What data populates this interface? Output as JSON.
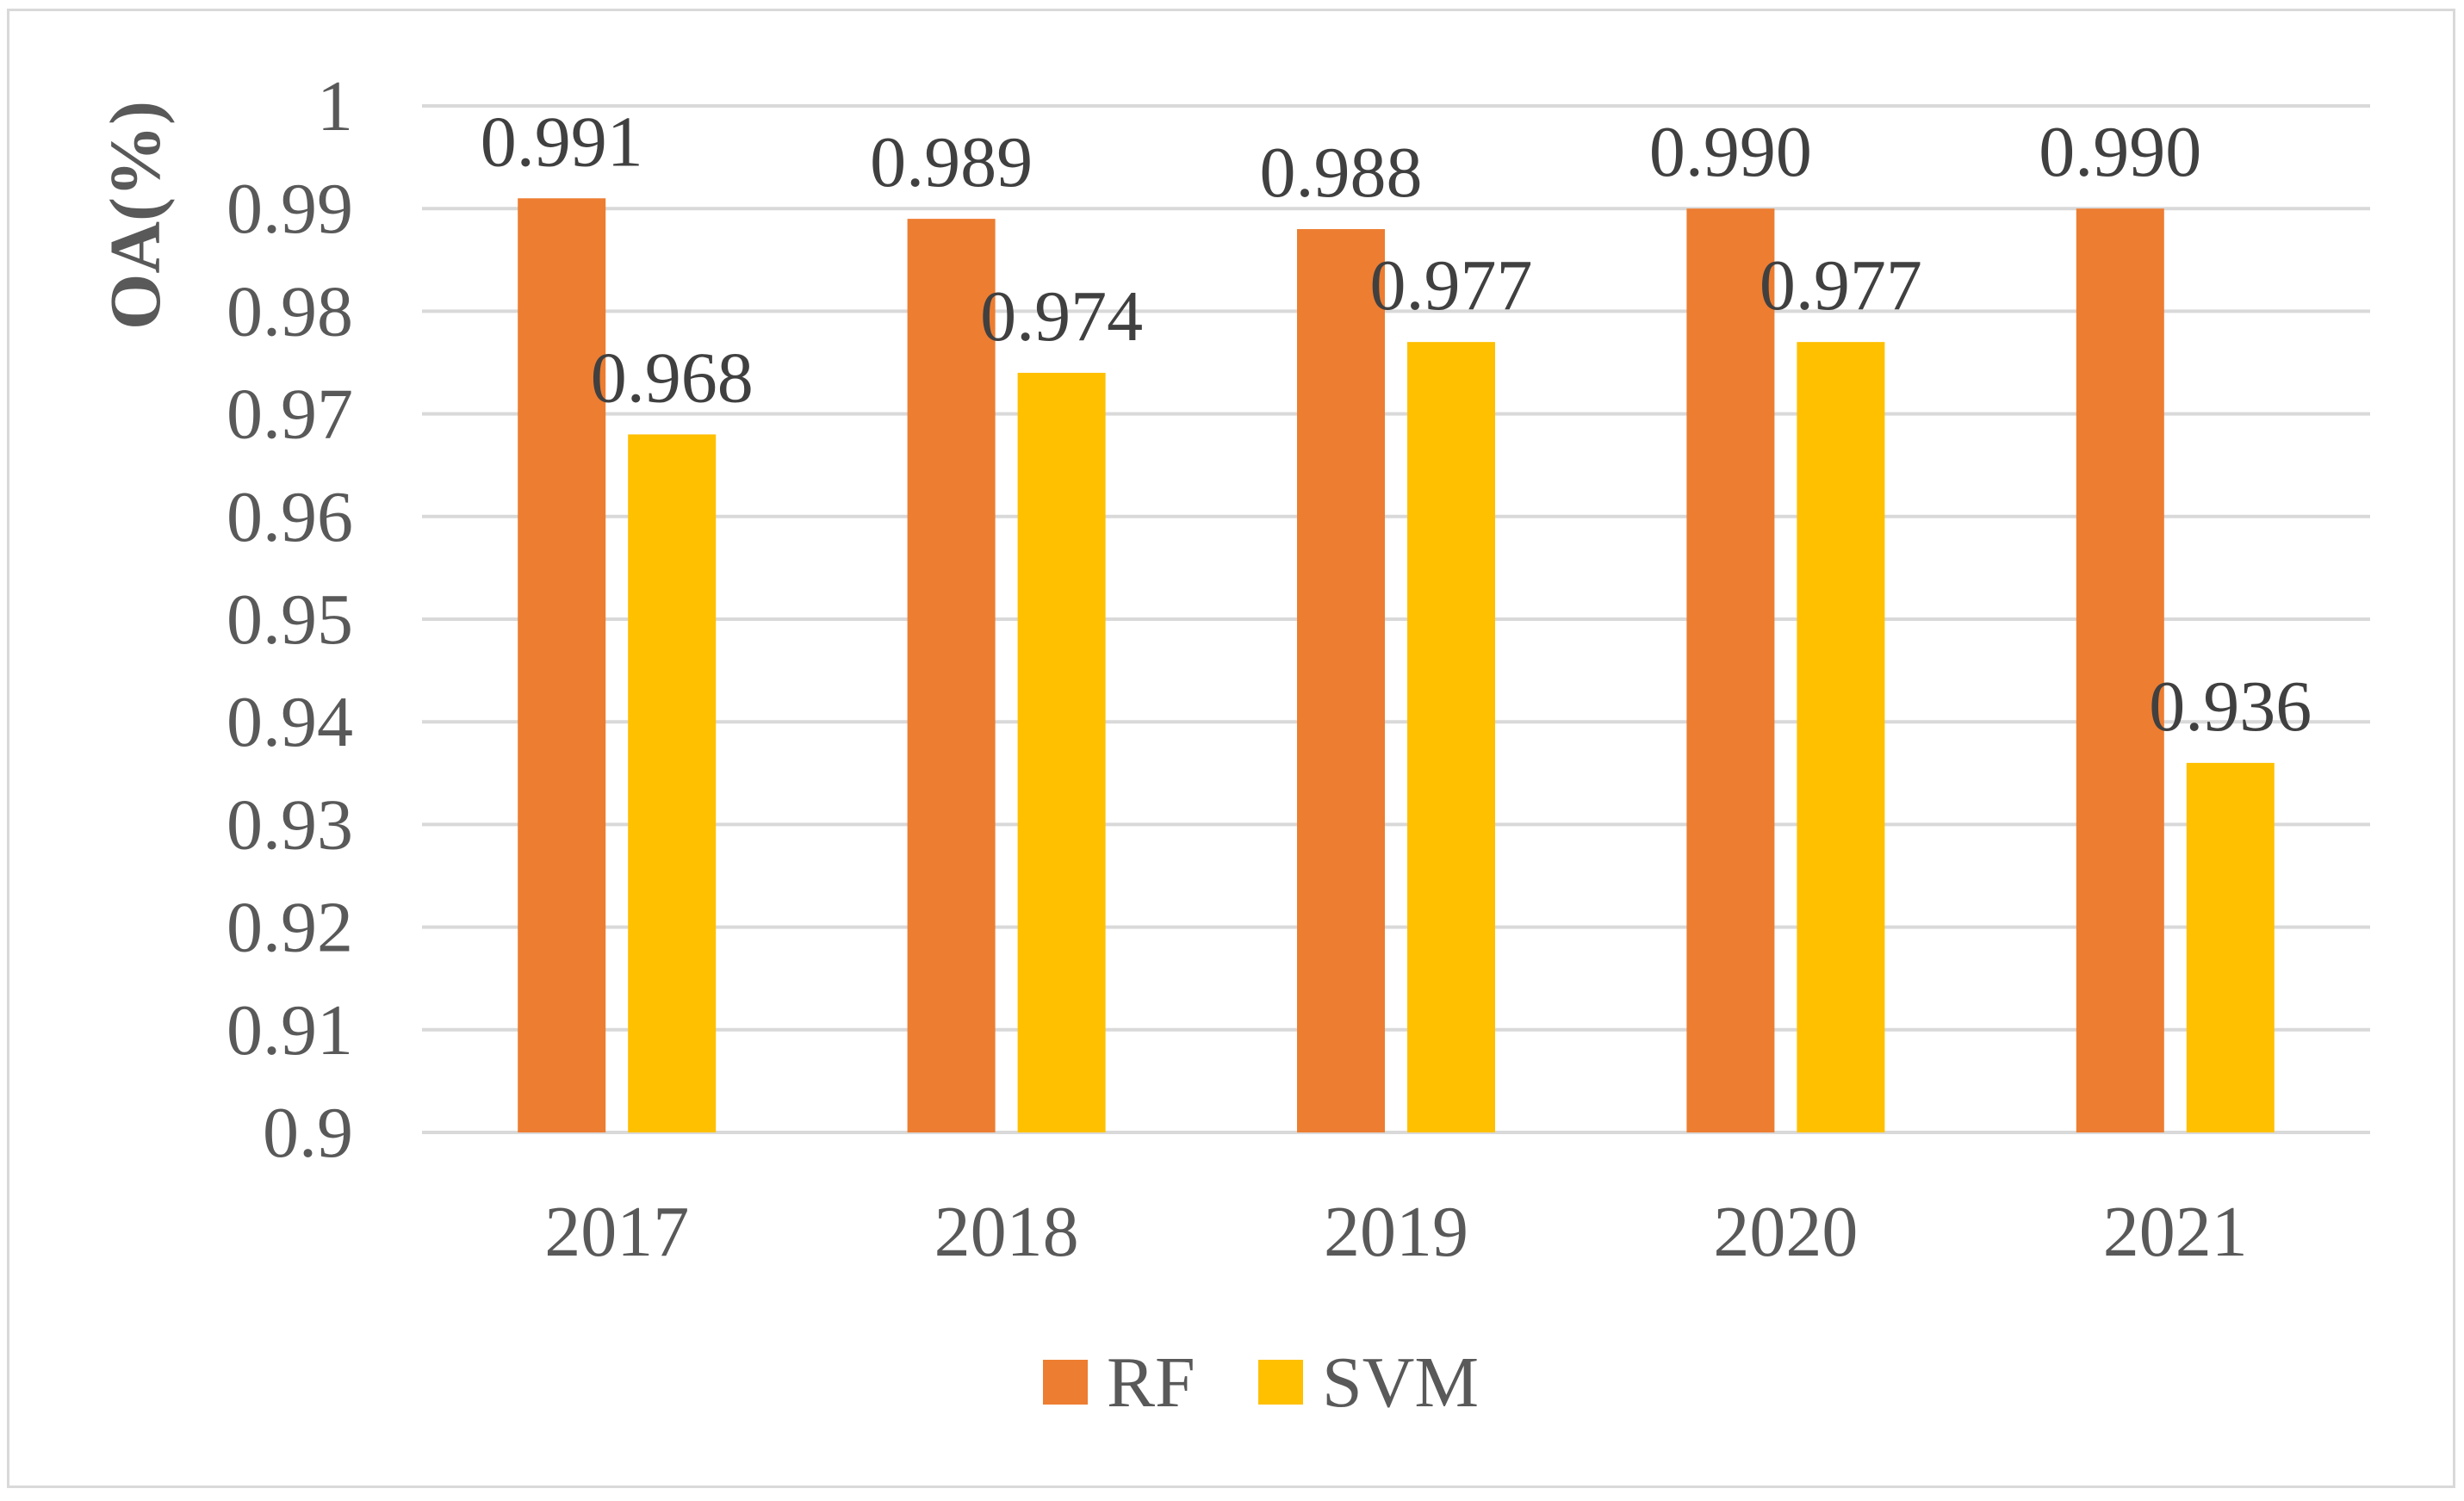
{
  "chart_data": {
    "type": "bar",
    "title": "",
    "xlabel": "",
    "ylabel": "OA(%)",
    "categories": [
      "2017",
      "2018",
      "2019",
      "2020",
      "2021"
    ],
    "ylim": [
      0.9,
      1.0
    ],
    "yticks": [
      0.9,
      0.91,
      0.92,
      0.93,
      0.94,
      0.95,
      0.96,
      0.97,
      0.98,
      0.99,
      1.0
    ],
    "ytick_labels": [
      "0.9",
      "0.91",
      "0.92",
      "0.93",
      "0.94",
      "0.95",
      "0.96",
      "0.97",
      "0.98",
      "0.99",
      "1"
    ],
    "grid": true,
    "legend_position": "bottom",
    "series": [
      {
        "name": "RF",
        "color": "#ED7D31",
        "values": [
          0.991,
          0.989,
          0.988,
          0.99,
          0.99
        ],
        "labels": [
          "0.991",
          "0.989",
          "0.988",
          "0.990",
          "0.990"
        ]
      },
      {
        "name": "SVM",
        "color": "#FFC000",
        "values": [
          0.968,
          0.974,
          0.977,
          0.977,
          0.936
        ],
        "labels": [
          "0.968",
          "0.974",
          "0.977",
          "0.977",
          "0.936"
        ]
      }
    ],
    "colors": {
      "grid": "#d9d9d9",
      "text": "#595959",
      "label": "#404040"
    }
  }
}
